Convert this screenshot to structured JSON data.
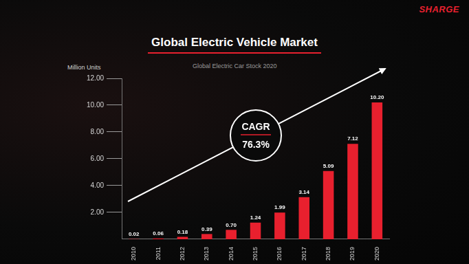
{
  "chart_data": {
    "type": "bar",
    "title": "Global Electric Vehicle Market",
    "subtitle": "Global Electric Car Stock 2020",
    "y_label": "Million Units",
    "logo": "SHARGE",
    "annotations": [
      "CAGR",
      "76.3%"
    ],
    "categories": [
      "2010",
      "2011",
      "2012",
      "2013",
      "2014",
      "2015",
      "2016",
      "2017",
      "2018",
      "2019",
      "2020"
    ],
    "values": [
      0.02,
      0.06,
      0.18,
      0.39,
      0.7,
      1.24,
      1.99,
      3.14,
      5.09,
      7.12,
      10.2
    ],
    "value_labels": [
      "0.02",
      "0.06",
      "0.18",
      "0.39",
      "0.70",
      "1.24",
      "1.99",
      "3.14",
      "5.09",
      "7.12",
      "10.20"
    ],
    "color": "#e8202e",
    "ylim": [
      0,
      12
    ],
    "yticks": [
      {
        "value": 2,
        "label": "2.00"
      },
      {
        "value": 4,
        "label": "4.00"
      },
      {
        "value": 6,
        "label": "6.00"
      },
      {
        "value": 8,
        "label": "8.00"
      },
      {
        "value": 10,
        "label": "10.00"
      },
      {
        "value": 12,
        "label": "12.00"
      }
    ],
    "grid": false,
    "data_labels": true
  }
}
